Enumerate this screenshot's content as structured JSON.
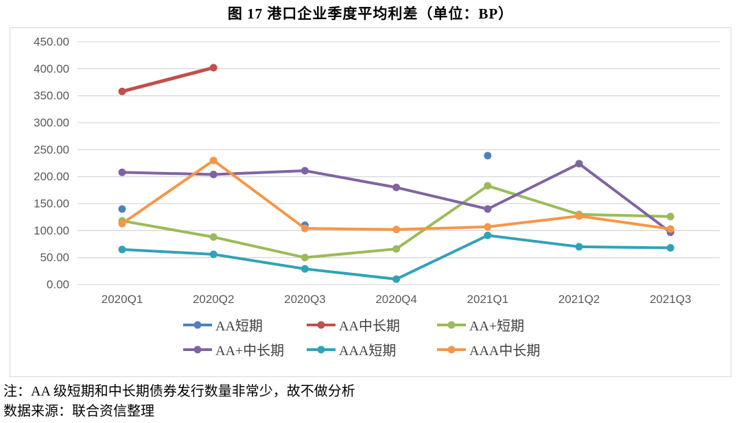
{
  "page": {
    "title": "图 17  港口企业季度平均利差（单位：BP）",
    "note": "注：AA 级短期和中长期债券发行数量非常少，故不做分析",
    "source": "数据来源：联合资信整理"
  },
  "colors": {
    "axis_label": "#595959",
    "gridline": "#d9d9d9",
    "chart_border": "#d6d6d6",
    "legend_text": "#404040"
  },
  "chart_data": {
    "type": "line",
    "title": "图 17  港口企业季度平均利差（单位：BP）",
    "unit": "BP",
    "categories": [
      "2020Q1",
      "2020Q2",
      "2020Q3",
      "2020Q4",
      "2021Q1",
      "2021Q2",
      "2021Q3"
    ],
    "series": [
      {
        "name": "AA短期",
        "id": "aa-short",
        "color": "#4F81BD",
        "values": [
          140,
          null,
          110,
          null,
          239,
          null,
          null
        ]
      },
      {
        "name": "AA中长期",
        "id": "aa-mid-long",
        "color": "#C0504D",
        "values": [
          358,
          402,
          null,
          null,
          null,
          null,
          null
        ]
      },
      {
        "name": "AA+短期",
        "id": "aa-plus-short",
        "color": "#9BBB59",
        "values": [
          118,
          88,
          50,
          66,
          183,
          130,
          126
        ]
      },
      {
        "name": "AA+中长期",
        "id": "aa-plus-mid-long",
        "color": "#8064A2",
        "values": [
          208,
          204,
          211,
          180,
          140,
          224,
          97
        ]
      },
      {
        "name": "AAA短期",
        "id": "aaa-short",
        "color": "#31A2B8",
        "values": [
          65,
          56,
          29,
          10,
          91,
          70,
          68
        ]
      },
      {
        "name": "AAA中长期",
        "id": "aaa-mid-long",
        "color": "#F79646",
        "values": [
          113,
          230,
          104,
          102,
          107,
          127,
          103
        ]
      }
    ],
    "ylim": [
      0,
      450
    ],
    "ytick_step": 50,
    "ytick_decimals": 2,
    "grid": true,
    "legend_position": "bottom",
    "legend_rows": [
      [
        "AA短期",
        "AA中长期",
        "AA+短期"
      ],
      [
        "AA+中长期",
        "AAA短期",
        "AAA中长期"
      ]
    ]
  }
}
